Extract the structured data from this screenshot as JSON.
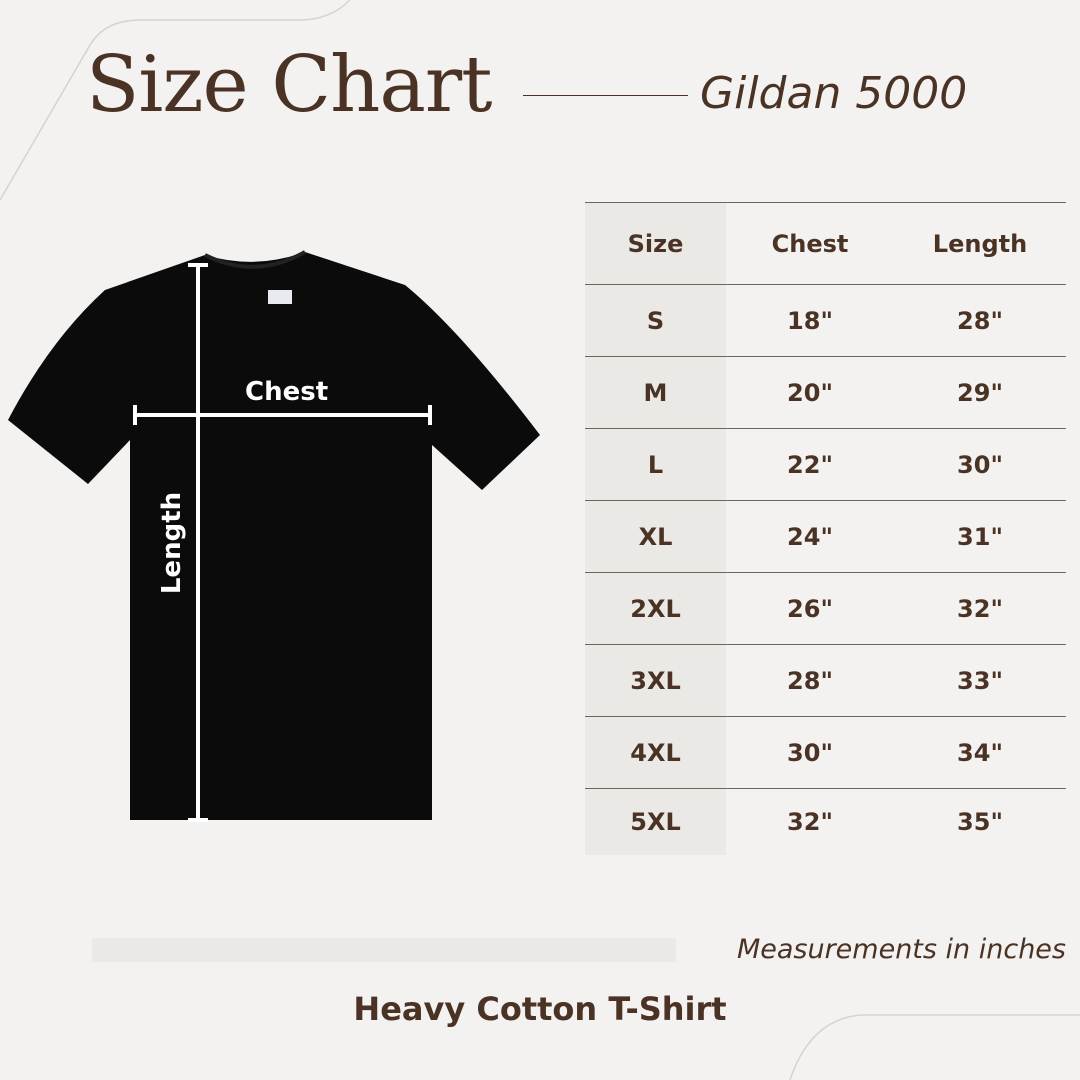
{
  "header": {
    "title": "Size Chart",
    "subtitle": "Gildan 5000"
  },
  "diagram": {
    "chest_label": "Chest",
    "length_label": "Length"
  },
  "table": {
    "headers": [
      "Size",
      "Chest",
      "Length"
    ],
    "rows": [
      [
        "S",
        "18\"",
        "28\""
      ],
      [
        "M",
        "20\"",
        "29\""
      ],
      [
        "L",
        "22\"",
        "30\""
      ],
      [
        "XL",
        "24\"",
        "31\""
      ],
      [
        "2XL",
        "26\"",
        "32\""
      ],
      [
        "3XL",
        "28\"",
        "33\""
      ],
      [
        "4XL",
        "30\"",
        "34\""
      ],
      [
        "5XL",
        "32\"",
        "35\""
      ]
    ]
  },
  "note": "Measurements in inches",
  "footer": "Heavy Cotton T-Shirt",
  "colors": {
    "background": "#f3f2f1",
    "text": "#4a3224",
    "size_column": "#ebe9e6",
    "shirt": "#0b0b0b"
  }
}
